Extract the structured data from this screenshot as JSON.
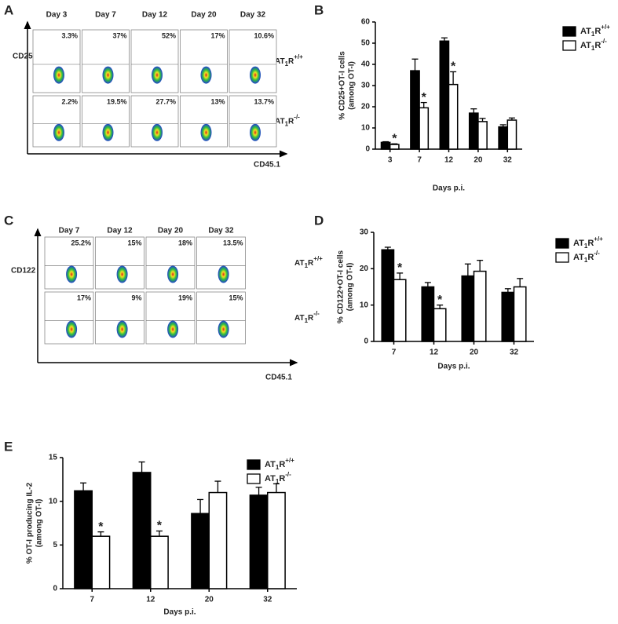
{
  "flow_panels": [
    {
      "panel": "A",
      "columns": [
        "Day 3",
        "Day 7",
        "Day 12",
        "Day 20",
        "Day 32"
      ],
      "rows": [
        {
          "label": "AT1R+/+",
          "percents": [
            "3.3%",
            "37%",
            "52%",
            "17%",
            "10.6%"
          ]
        },
        {
          "label": "AT1R-/-",
          "percents": [
            "2.2%",
            "19.5%",
            "27.7%",
            "13%",
            "13.7%"
          ]
        }
      ],
      "ylabel": "CD25",
      "xlabel": "CD45.1"
    },
    {
      "panel": "C",
      "columns": [
        "Day 7",
        "Day 12",
        "Day 20",
        "Day 32"
      ],
      "rows": [
        {
          "label": "AT1R+/+",
          "percents": [
            "25.2%",
            "15%",
            "18%",
            "13.5%"
          ]
        },
        {
          "label": "AT1R-/-",
          "percents": [
            "17%",
            "9%",
            "19%",
            "15%"
          ]
        }
      ],
      "ylabel": "CD122",
      "xlabel": "CD45.1"
    }
  ],
  "chart_data": [
    {
      "type": "bar",
      "panel": "B",
      "ylabel": [
        "% CD25+OT-I cells",
        "(among OT-I)"
      ],
      "xlabel": "Days p.i.",
      "categories": [
        "3",
        "7",
        "12",
        "20",
        "32"
      ],
      "ylim": [
        0,
        60
      ],
      "yticks": [
        0,
        10,
        20,
        30,
        40,
        50,
        60
      ],
      "series": [
        {
          "name": "AT1R+/+",
          "color": "#000000",
          "values": [
            3.2,
            37,
            51,
            17,
            10.5
          ],
          "errors": [
            0.3,
            5.5,
            1.5,
            2,
            1
          ],
          "significance": [
            null,
            null,
            null,
            null,
            null
          ]
        },
        {
          "name": "AT1R-/-",
          "color": "#ffffff",
          "values": [
            2.2,
            19.5,
            30.5,
            13,
            13.7
          ],
          "errors": [
            0.3,
            2.5,
            6,
            1.5,
            1
          ],
          "significance": [
            "*",
            "*",
            "*",
            null,
            null
          ]
        }
      ]
    },
    {
      "type": "bar",
      "panel": "D",
      "ylabel": [
        "% CD122+OT-I cells",
        "(among OT-I)"
      ],
      "xlabel": "Days p.i.",
      "categories": [
        "7",
        "12",
        "20",
        "32"
      ],
      "ylim": [
        0,
        30
      ],
      "yticks": [
        0,
        10,
        20,
        30
      ],
      "series": [
        {
          "name": "AT1R+/+",
          "color": "#000000",
          "values": [
            25.2,
            15,
            18,
            13.5
          ],
          "errors": [
            0.7,
            1.2,
            3.3,
            1
          ],
          "significance": [
            null,
            null,
            null,
            null
          ]
        },
        {
          "name": "AT1R-/-",
          "color": "#ffffff",
          "values": [
            17,
            9,
            19.3,
            15
          ],
          "errors": [
            1.8,
            1,
            3,
            2.3
          ],
          "significance": [
            "*",
            "*",
            null,
            null
          ]
        }
      ]
    },
    {
      "type": "bar",
      "panel": "E",
      "ylabel": [
        "% OT-I producing IL-2",
        "(among OT-I)"
      ],
      "xlabel": "Days p.i.",
      "categories": [
        "7",
        "12",
        "20",
        "32"
      ],
      "ylim": [
        0,
        15
      ],
      "yticks": [
        0,
        5,
        10,
        15
      ],
      "series": [
        {
          "name": "AT1R+/+",
          "color": "#000000",
          "values": [
            11.2,
            13.3,
            8.6,
            10.7
          ],
          "errors": [
            0.9,
            1.2,
            1.6,
            0.9
          ],
          "significance": [
            null,
            null,
            null,
            null
          ]
        },
        {
          "name": "AT1R-/-",
          "color": "#ffffff",
          "values": [
            6,
            6,
            11,
            11
          ],
          "errors": [
            0.5,
            0.6,
            1.3,
            1
          ],
          "significance": [
            "*",
            "*",
            null,
            null
          ]
        }
      ]
    }
  ]
}
